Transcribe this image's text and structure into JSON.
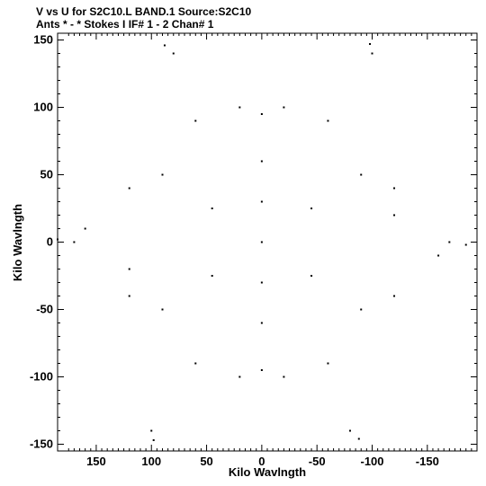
{
  "header": {
    "line1": "V vs U for S2C10.L BAND.1   Source:S2C10",
    "line2": "Ants * - *      Stokes I  IF# 1 - 2  Chan# 1"
  },
  "chart_data": {
    "type": "scatter",
    "title": "V vs U for S2C10.L BAND.1   Source:S2C10",
    "subtitle": "Ants * - *      Stokes I  IF# 1 - 2  Chan# 1",
    "xlabel": "Kilo Wavlngth",
    "ylabel": "Kilo Wavlngth",
    "xlim": [
      185,
      -195
    ],
    "ylim": [
      -155,
      155
    ],
    "x_reversed": true,
    "grid": false,
    "x_ticks": [
      150,
      100,
      50,
      0,
      -50,
      -100,
      -150
    ],
    "x_tick_labels": [
      "150",
      "100",
      "50",
      "0",
      "-50",
      "-100",
      "-150"
    ],
    "y_ticks": [
      150,
      100,
      50,
      0,
      -50,
      -100,
      -150
    ],
    "y_tick_labels": [
      "150",
      "100",
      "50",
      "0",
      "-50",
      "-100",
      "-150"
    ],
    "series": [
      {
        "points": [
          [
            0,
            0
          ],
          [
            0,
            95
          ],
          [
            0,
            -95
          ],
          [
            0,
            60
          ],
          [
            0,
            -60
          ],
          [
            0,
            30
          ],
          [
            0,
            -30
          ],
          [
            88,
            146
          ],
          [
            -88,
            -146
          ],
          [
            -98,
            147
          ],
          [
            98,
            -147
          ],
          [
            -185,
            -2
          ],
          [
            185,
            2
          ],
          [
            45,
            25
          ],
          [
            -45,
            -25
          ],
          [
            -45,
            25
          ],
          [
            45,
            -25
          ],
          [
            90,
            50
          ],
          [
            -90,
            -50
          ],
          [
            -90,
            50
          ],
          [
            90,
            -50
          ],
          [
            120,
            40
          ],
          [
            -120,
            -40
          ],
          [
            -120,
            40
          ],
          [
            120,
            -40
          ],
          [
            160,
            10
          ],
          [
            -160,
            -10
          ],
          [
            60,
            90
          ],
          [
            -60,
            -90
          ],
          [
            -60,
            90
          ],
          [
            60,
            -90
          ],
          [
            -20,
            100
          ],
          [
            20,
            -100
          ],
          [
            20,
            100
          ],
          [
            -20,
            -100
          ],
          [
            -120,
            20
          ],
          [
            120,
            -20
          ],
          [
            -170,
            0
          ],
          [
            170,
            0
          ],
          [
            -100,
            140
          ],
          [
            100,
            -140
          ],
          [
            80,
            140
          ],
          [
            -80,
            -140
          ]
        ]
      }
    ]
  }
}
